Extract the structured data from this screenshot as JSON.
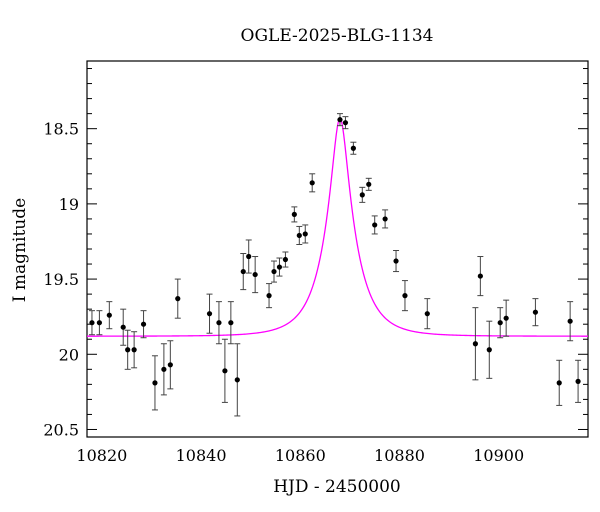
{
  "chart_data": {
    "type": "scatter",
    "title": "OGLE-2025-BLG-1134",
    "xlabel": "HJD - 2450000",
    "ylabel": "I magnitude",
    "xlim": [
      10817,
      10918
    ],
    "ylim": [
      20.55,
      18.05
    ],
    "y_inverted": true,
    "grid": false,
    "xticks": [
      10820,
      10840,
      10860,
      10880,
      10900
    ],
    "yticks": [
      18.5,
      19,
      19.5,
      20,
      20.5
    ],
    "xtick_labels": [
      "10820",
      "10840",
      "10860",
      "10880",
      "10900"
    ],
    "ytick_labels": [
      "18.5",
      "19",
      "19.5",
      "20",
      "20.5"
    ],
    "colors": {
      "points": "#000000",
      "model": "#ff00ff"
    },
    "series": [
      {
        "kind": "points_with_errorbars",
        "x": [
          10818.0,
          10819.5,
          10821.5,
          10824.3,
          10825.2,
          10826.5,
          10828.4,
          10830.7,
          10832.5,
          10833.8,
          10835.3,
          10841.7,
          10843.6,
          10844.8,
          10846.0,
          10847.3,
          10848.5,
          10849.6,
          10850.9,
          10853.7,
          10854.7,
          10855.8,
          10857.0,
          10858.8,
          10859.8,
          10861.0,
          10862.4,
          10868.0,
          10869.1,
          10870.7,
          10872.5,
          10873.8,
          10875.0,
          10877.1,
          10879.3,
          10881.1,
          10885.6,
          10895.3,
          10896.3,
          10898.1,
          10900.3,
          10901.5,
          10907.4,
          10912.2,
          10914.4,
          10916.0
        ],
        "y": [
          19.79,
          19.79,
          19.74,
          19.82,
          19.97,
          19.97,
          19.8,
          20.19,
          20.1,
          20.07,
          19.63,
          19.73,
          19.79,
          20.11,
          19.79,
          20.17,
          19.45,
          19.35,
          19.47,
          19.61,
          19.45,
          19.42,
          19.37,
          19.07,
          19.21,
          19.2,
          18.86,
          18.44,
          18.46,
          18.63,
          18.94,
          18.87,
          19.14,
          19.1,
          19.38,
          19.61,
          19.73,
          19.93,
          19.48,
          19.97,
          19.79,
          19.76,
          19.72,
          20.19,
          19.78,
          20.18
        ],
        "yerr": [
          0.08,
          0.08,
          0.09,
          0.12,
          0.13,
          0.12,
          0.09,
          0.18,
          0.17,
          0.16,
          0.13,
          0.13,
          0.14,
          0.21,
          0.14,
          0.24,
          0.12,
          0.11,
          0.12,
          0.08,
          0.07,
          0.06,
          0.05,
          0.05,
          0.06,
          0.06,
          0.06,
          0.04,
          0.04,
          0.04,
          0.05,
          0.04,
          0.06,
          0.06,
          0.07,
          0.1,
          0.1,
          0.24,
          0.13,
          0.19,
          0.1,
          0.12,
          0.09,
          0.15,
          0.13,
          0.14
        ]
      },
      {
        "kind": "model_curve",
        "t0": 10868.0,
        "tE": 6.0,
        "u0": 0.25,
        "baseline": 19.88,
        "peak": 18.43
      }
    ]
  }
}
